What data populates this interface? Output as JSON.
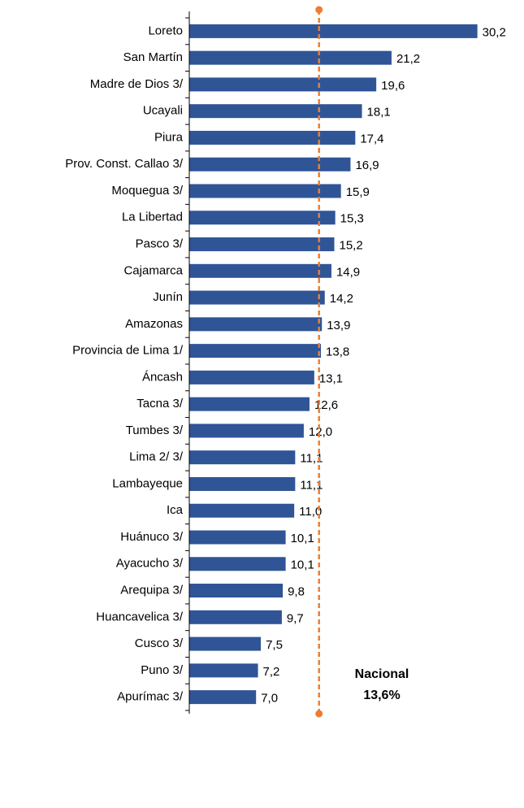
{
  "chart_data": {
    "type": "bar",
    "orientation": "horizontal",
    "categories": [
      "Loreto",
      "San Martín",
      "Madre de Dios 3/",
      "Ucayali",
      "Piura",
      "Prov. Const. Callao 3/",
      "Moquegua 3/",
      "La Libertad",
      "Pasco 3/",
      "Cajamarca",
      "Junín",
      "Amazonas",
      "Provincia de Lima 1/",
      "Áncash",
      "Tacna 3/",
      "Tumbes 3/",
      "Lima 2/ 3/",
      "Lambayeque",
      "Ica",
      "Huánuco 3/",
      "Ayacucho 3/",
      "Arequipa 3/",
      "Huancavelica 3/",
      "Cusco 3/",
      "Puno 3/",
      "Apurímac 3/"
    ],
    "values": [
      30.2,
      21.2,
      19.6,
      18.1,
      17.4,
      16.9,
      15.9,
      15.3,
      15.2,
      14.9,
      14.2,
      13.9,
      13.8,
      13.1,
      12.6,
      12.0,
      11.1,
      11.1,
      11.0,
      10.1,
      10.1,
      9.8,
      9.7,
      7.5,
      7.2,
      7.0
    ],
    "value_labels": [
      "30,2",
      "21,2",
      "19,6",
      "18,1",
      "17,4",
      "16,9",
      "15,9",
      "15,3",
      "15,2",
      "14,9",
      "14,2",
      "13,9",
      "13,8",
      "13,1",
      "12,6",
      "12,0",
      "11,1",
      "11,1",
      "11,0",
      "10,1",
      "10,1",
      "9,8",
      "9,7",
      "7,5",
      "7,2",
      "7,0"
    ],
    "color": "#2f5597",
    "xlim": [
      0,
      35
    ],
    "reference_line": {
      "value": 13.6,
      "label": "Nacional",
      "value_label": "13,6%",
      "color": "#ed7d31"
    }
  }
}
